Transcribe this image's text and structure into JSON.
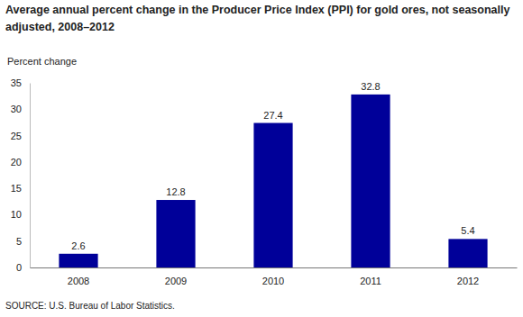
{
  "chart_data": {
    "type": "bar",
    "title": "Average annual percent change in the Producer Price Index (PPI) for gold ores, not seasonally adjusted, 2008–2012",
    "y_label": "Percent change",
    "source": "SOURCE: U.S. Bureau of Labor Statistics.",
    "categories": [
      "2008",
      "2009",
      "2010",
      "2011",
      "2012"
    ],
    "values": [
      2.6,
      12.8,
      27.4,
      32.8,
      5.4
    ],
    "color": "#000099",
    "ylim": [
      0,
      35
    ],
    "yticks": [
      0,
      5,
      10,
      15,
      20,
      25,
      30,
      35
    ],
    "grid": false,
    "data_labels": true
  }
}
